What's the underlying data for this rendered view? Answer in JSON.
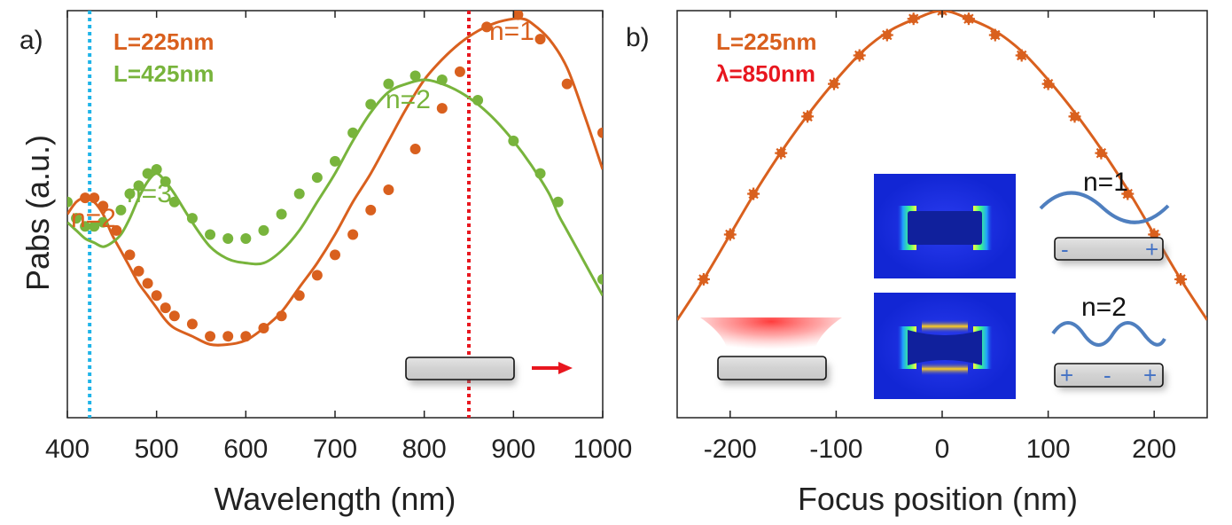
{
  "colors": {
    "orange": "#d9601e",
    "green": "#78b43c",
    "blue_dotted": "#1fb4e8",
    "red_dotted": "#e8171f",
    "red_text": "#e8171f",
    "wave": "#4f7fbf",
    "axis": "#222222"
  },
  "chart_data": [
    {
      "panel": "a)",
      "type": "line",
      "xlabel": "Wavelength (nm)",
      "ylabel": "Pabs (a.u.)",
      "xlim": [
        400,
        1000
      ],
      "ylim": [
        0,
        1
      ],
      "xticks": [
        400,
        500,
        600,
        700,
        800,
        900,
        1000
      ],
      "legend": [
        {
          "label": "L=225nm",
          "color": "#d9601e"
        },
        {
          "label": "L=425nm",
          "color": "#78b43c"
        }
      ],
      "series": [
        {
          "name": "L=225nm",
          "color": "#d9601e",
          "x": [
            400,
            410,
            420,
            430,
            440,
            450,
            460,
            470,
            480,
            490,
            500,
            510,
            520,
            540,
            560,
            580,
            600,
            620,
            640,
            660,
            680,
            700,
            720,
            740,
            760,
            780,
            800,
            820,
            840,
            860,
            880,
            900,
            910,
            920,
            940,
            960,
            980,
            1000
          ],
          "y": [
            0.5,
            0.53,
            0.54,
            0.53,
            0.5,
            0.45,
            0.41,
            0.37,
            0.33,
            0.3,
            0.27,
            0.24,
            0.22,
            0.2,
            0.18,
            0.18,
            0.19,
            0.22,
            0.26,
            0.32,
            0.38,
            0.45,
            0.53,
            0.6,
            0.68,
            0.76,
            0.83,
            0.88,
            0.92,
            0.95,
            0.97,
            0.98,
            0.98,
            0.97,
            0.93,
            0.86,
            0.74,
            0.61
          ]
        },
        {
          "name": "L=425nm",
          "color": "#78b43c",
          "x": [
            400,
            410,
            420,
            430,
            440,
            450,
            460,
            470,
            480,
            490,
            500,
            510,
            520,
            540,
            560,
            580,
            600,
            620,
            640,
            660,
            680,
            700,
            720,
            740,
            760,
            780,
            800,
            820,
            840,
            860,
            880,
            900,
            920,
            940,
            950,
            960,
            980,
            1000
          ],
          "y": [
            0.48,
            0.46,
            0.44,
            0.43,
            0.42,
            0.43,
            0.45,
            0.49,
            0.54,
            0.58,
            0.6,
            0.58,
            0.55,
            0.48,
            0.42,
            0.39,
            0.38,
            0.38,
            0.41,
            0.46,
            0.53,
            0.6,
            0.68,
            0.75,
            0.8,
            0.82,
            0.83,
            0.82,
            0.8,
            0.77,
            0.73,
            0.68,
            0.62,
            0.55,
            0.5,
            0.46,
            0.38,
            0.3
          ]
        }
      ],
      "markers": {
        "L=225nm": [
          [
            420,
            0.54
          ],
          [
            430,
            0.54
          ],
          [
            440,
            0.52
          ],
          [
            455,
            0.46
          ],
          [
            470,
            0.4
          ],
          [
            480,
            0.36
          ],
          [
            490,
            0.33
          ],
          [
            500,
            0.3
          ],
          [
            510,
            0.27
          ],
          [
            520,
            0.25
          ],
          [
            540,
            0.23
          ],
          [
            560,
            0.2
          ],
          [
            580,
            0.2
          ],
          [
            600,
            0.2
          ],
          [
            620,
            0.22
          ],
          [
            640,
            0.25
          ],
          [
            660,
            0.3
          ],
          [
            680,
            0.35
          ],
          [
            700,
            0.4
          ],
          [
            720,
            0.45
          ],
          [
            740,
            0.51
          ],
          [
            760,
            0.56
          ],
          [
            790,
            0.66
          ],
          [
            820,
            0.76
          ],
          [
            840,
            0.85
          ],
          [
            870,
            0.96
          ],
          [
            905,
            0.99
          ],
          [
            930,
            0.93
          ],
          [
            960,
            0.82
          ],
          [
            1000,
            0.7
          ]
        ],
        "L=425nm": [
          [
            400,
            0.53
          ],
          [
            410,
            0.49
          ],
          [
            420,
            0.47
          ],
          [
            430,
            0.47
          ],
          [
            440,
            0.48
          ],
          [
            460,
            0.51
          ],
          [
            470,
            0.55
          ],
          [
            480,
            0.57
          ],
          [
            490,
            0.6
          ],
          [
            500,
            0.61
          ],
          [
            510,
            0.58
          ],
          [
            520,
            0.53
          ],
          [
            540,
            0.49
          ],
          [
            560,
            0.45
          ],
          [
            580,
            0.44
          ],
          [
            600,
            0.44
          ],
          [
            620,
            0.46
          ],
          [
            640,
            0.5
          ],
          [
            660,
            0.55
          ],
          [
            680,
            0.59
          ],
          [
            700,
            0.63
          ],
          [
            720,
            0.7
          ],
          [
            740,
            0.77
          ],
          [
            760,
            0.82
          ],
          [
            790,
            0.84
          ],
          [
            820,
            0.83
          ],
          [
            860,
            0.78
          ],
          [
            900,
            0.68
          ],
          [
            930,
            0.6
          ],
          [
            950,
            0.53
          ],
          [
            1000,
            0.34
          ]
        ]
      },
      "vlines": [
        {
          "x": 425,
          "color": "#1fb4e8",
          "style": "dotted"
        },
        {
          "x": 850,
          "color": "#e8171f",
          "style": "dotted"
        }
      ],
      "annotations": [
        {
          "text": "n=1",
          "color": "#d9601e"
        },
        {
          "text": "n=2",
          "color": "#78b43c"
        },
        {
          "text": "n=3",
          "color": "#78b43c"
        },
        {
          "text": "n=2",
          "color": "#d9601e"
        }
      ]
    },
    {
      "panel": "b)",
      "type": "line",
      "xlabel": "Focus position (nm)",
      "ylabel": "",
      "xlim": [
        -250,
        250
      ],
      "ylim": [
        0,
        1
      ],
      "xticks": [
        -200,
        -100,
        0,
        100,
        200
      ],
      "legend": [
        {
          "label": "L=225nm",
          "color": "#d9601e"
        },
        {
          "label": "λ=850nm",
          "color": "#e8171f"
        }
      ],
      "series": [
        {
          "name": "L=225nm",
          "color": "#d9601e",
          "x": [
            -250,
            -225,
            -200,
            -175,
            -150,
            -125,
            -100,
            -75,
            -50,
            -25,
            0,
            25,
            50,
            75,
            100,
            125,
            150,
            175,
            200,
            225,
            250
          ],
          "y": [
            0.24,
            0.34,
            0.45,
            0.56,
            0.66,
            0.75,
            0.83,
            0.9,
            0.95,
            0.98,
            1.0,
            0.98,
            0.95,
            0.9,
            0.83,
            0.75,
            0.66,
            0.56,
            0.45,
            0.34,
            0.24
          ]
        }
      ],
      "markers": {
        "L=225nm": [
          [
            -225,
            0.34
          ],
          [
            -200,
            0.45
          ],
          [
            -178,
            0.55
          ],
          [
            -152,
            0.65
          ],
          [
            -127,
            0.74
          ],
          [
            -102,
            0.82
          ],
          [
            -78,
            0.89
          ],
          [
            -52,
            0.94
          ],
          [
            -27,
            0.98
          ],
          [
            0,
            1.0
          ],
          [
            25,
            0.98
          ],
          [
            50,
            0.94
          ],
          [
            75,
            0.89
          ],
          [
            100,
            0.82
          ],
          [
            125,
            0.74
          ],
          [
            150,
            0.65
          ],
          [
            175,
            0.55
          ],
          [
            200,
            0.45
          ],
          [
            225,
            0.34
          ]
        ]
      }
    }
  ],
  "insets": {
    "mode1": {
      "label": "n=1",
      "signs": [
        "-",
        "+"
      ]
    },
    "mode2": {
      "label": "n=2",
      "signs": [
        "+",
        "-",
        "+"
      ]
    }
  }
}
